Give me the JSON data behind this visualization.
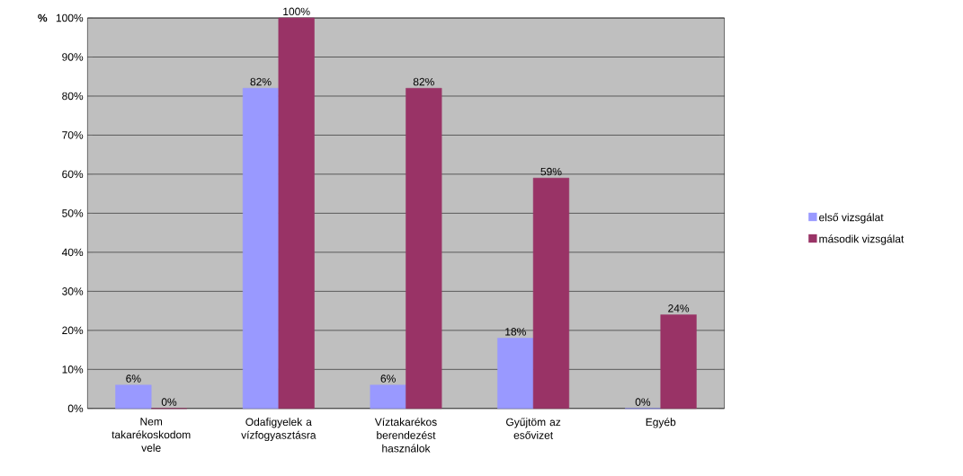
{
  "chart_data": {
    "type": "bar",
    "ylabel": "%",
    "categories": [
      "Nem takarékoskodom vele",
      "Odafigyelek a vízfogyasztásra",
      "Víztakarékos berendezést használok",
      "Gyűjtöm az esővizet",
      "Egyéb"
    ],
    "series": [
      {
        "name": "első vizsgálat",
        "color": "#9999ff",
        "values": [
          6,
          82,
          6,
          18,
          0
        ],
        "value_labels": [
          "6%",
          "82%",
          "6%",
          "18%",
          "0%"
        ]
      },
      {
        "name": "második vizsgálat",
        "color": "#993366",
        "values": [
          0,
          100,
          82,
          59,
          24
        ],
        "value_labels": [
          "0%",
          "100%",
          "82%",
          "59%",
          "24%"
        ]
      }
    ],
    "ylim": [
      0,
      100
    ],
    "yticks": [
      {
        "value": 0,
        "label": "0%"
      },
      {
        "value": 10,
        "label": "10%"
      },
      {
        "value": 20,
        "label": "20%"
      },
      {
        "value": 30,
        "label": "30%"
      },
      {
        "value": 40,
        "label": "40%"
      },
      {
        "value": 50,
        "label": "50%"
      },
      {
        "value": 60,
        "label": "60%"
      },
      {
        "value": 70,
        "label": "70%"
      },
      {
        "value": 80,
        "label": "80%"
      },
      {
        "value": 90,
        "label": "90%"
      },
      {
        "value": 100,
        "label": "100%"
      }
    ],
    "grid": "y",
    "legend": "right"
  }
}
